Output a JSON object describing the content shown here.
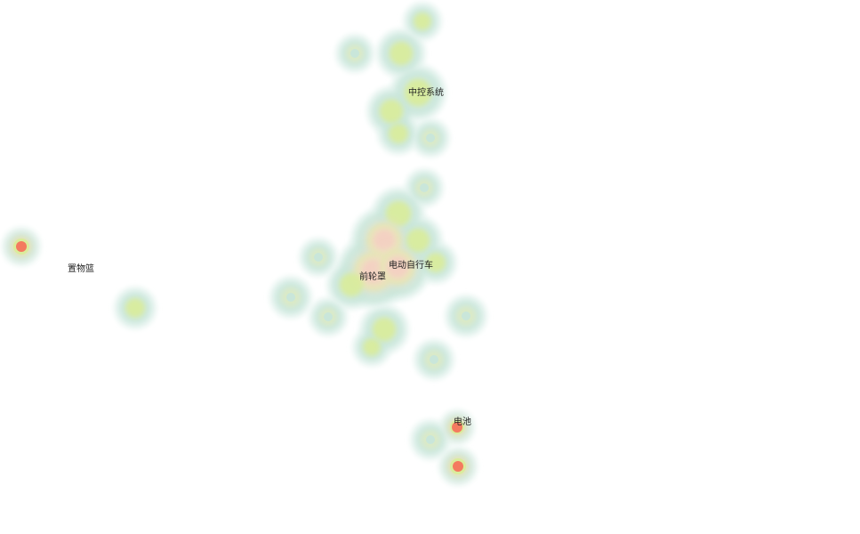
{
  "chart_data": {
    "type": "heatmap",
    "palette": {
      "outer": "#e4f3ee",
      "ring": "#c9e6da",
      "core": "#dceac4",
      "mid": "#d9ec9a",
      "high": "#f0e0c4",
      "peak": "#f4cfc2",
      "hot": "#f47a5f"
    },
    "labels": [
      {
        "text": "置物篮"
      },
      {
        "text": "中控系统"
      },
      {
        "text": "前轮罩"
      },
      {
        "text": "电动自行车"
      },
      {
        "text": "电池"
      }
    ]
  }
}
